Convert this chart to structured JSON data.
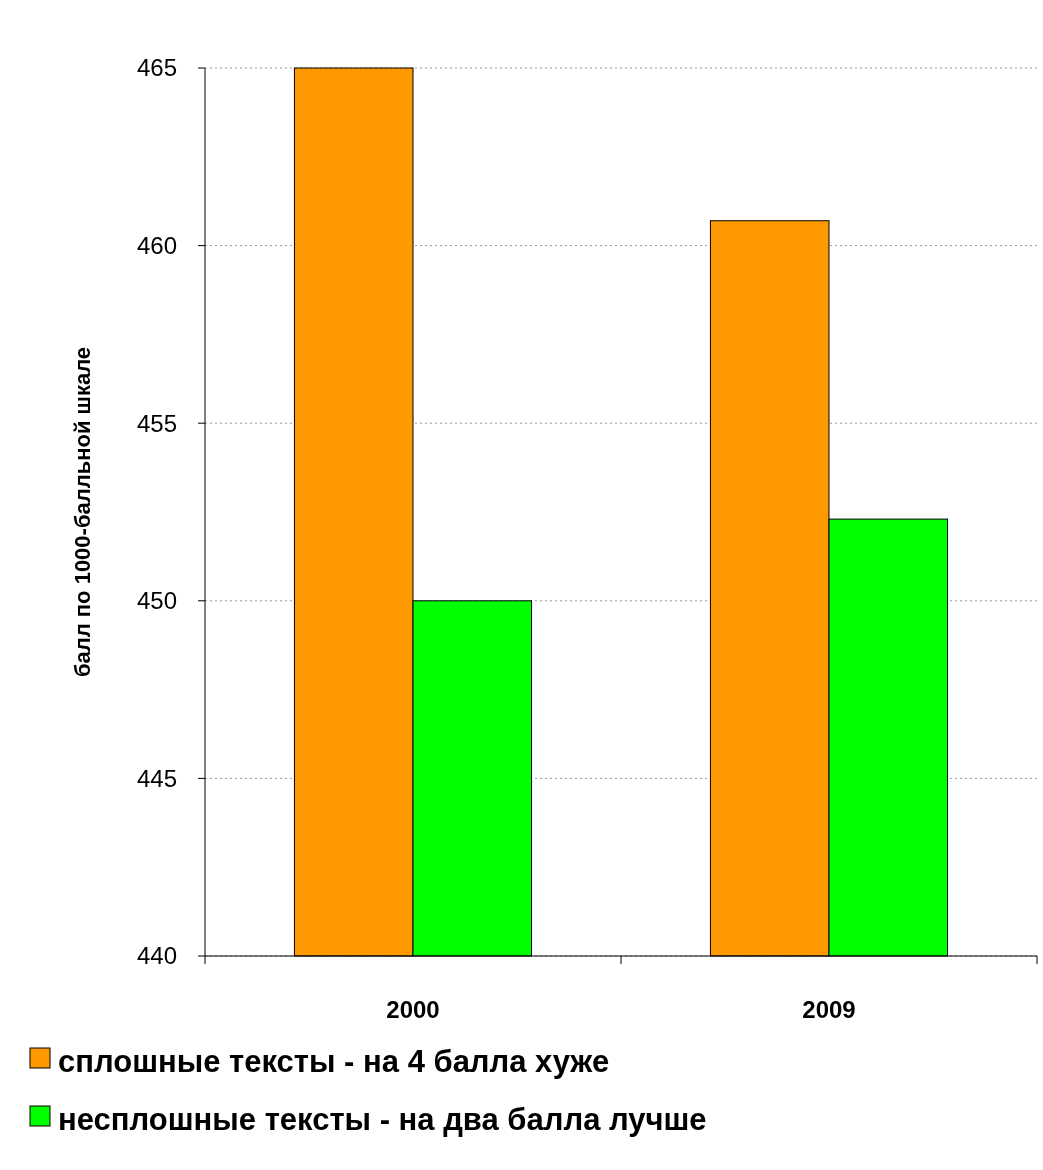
{
  "chart_data": {
    "type": "bar",
    "ylabel": "балл по 1000-балльной шкале",
    "categories": [
      "2000",
      "2009"
    ],
    "series": [
      {
        "name": "сплошные тексты - на 4 балла хуже",
        "color": "#ff9900",
        "values": [
          465,
          460.7
        ]
      },
      {
        "name": "несплошные тексты - на два балла лучше",
        "color": "#00ff00",
        "values": [
          450,
          452.3
        ]
      }
    ],
    "ylim": [
      440,
      465
    ],
    "yticks": [
      440,
      445,
      450,
      455,
      460,
      465
    ],
    "grid": "y",
    "legend": "bottom left"
  }
}
